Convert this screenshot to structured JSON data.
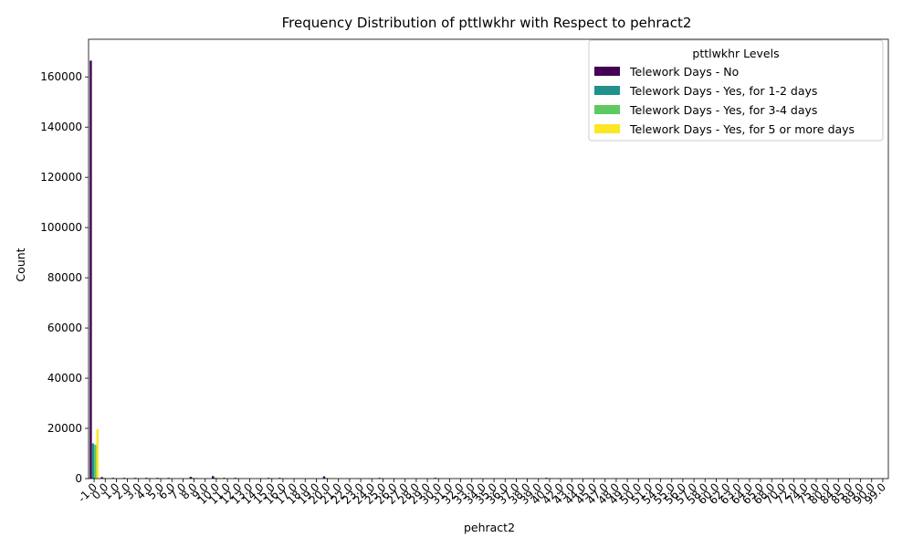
{
  "chart_data": {
    "type": "bar",
    "title": "Frequency Distribution of pttlwkhr with Respect to pehract2",
    "xlabel": "pehract2",
    "ylabel": "Count",
    "ylim": [
      0,
      175000
    ],
    "yticks": [
      0,
      20000,
      40000,
      60000,
      80000,
      100000,
      120000,
      140000,
      160000
    ],
    "grid": false,
    "legend": {
      "title": "pttlwkhr Levels",
      "placement": "top-right"
    },
    "categories": [
      "-1.0",
      "0.0",
      "1.0",
      "2.0",
      "3.0",
      "4.0",
      "5.0",
      "6.0",
      "7.0",
      "8.0",
      "9.0",
      "10.0",
      "11.0",
      "12.0",
      "13.0",
      "14.0",
      "15.0",
      "16.0",
      "17.0",
      "18.0",
      "19.0",
      "20.0",
      "21.0",
      "22.0",
      "23.0",
      "24.0",
      "25.0",
      "26.0",
      "27.0",
      "28.0",
      "29.0",
      "30.0",
      "31.0",
      "32.0",
      "33.0",
      "34.0",
      "35.0",
      "36.0",
      "37.0",
      "38.0",
      "39.0",
      "40.0",
      "42.0",
      "43.0",
      "44.0",
      "45.0",
      "47.0",
      "48.0",
      "49.0",
      "50.0",
      "51.0",
      "54.0",
      "55.0",
      "56.0",
      "57.0",
      "58.0",
      "60.0",
      "62.0",
      "63.0",
      "64.0",
      "65.0",
      "68.0",
      "70.0",
      "72.0",
      "74.0",
      "75.0",
      "80.0",
      "84.0",
      "85.0",
      "89.0",
      "90.0",
      "99.0"
    ],
    "series": [
      {
        "name": "Telework Days - No",
        "color": "#440154",
        "values": [
          166500,
          600,
          300,
          300,
          300,
          300,
          300,
          300,
          50,
          700,
          50,
          1000,
          300,
          300,
          50,
          50,
          300,
          300,
          50,
          50,
          50,
          900,
          50,
          50,
          50,
          50,
          300,
          50,
          50,
          50,
          50,
          300,
          50,
          50,
          50,
          50,
          50,
          50,
          50,
          50,
          50,
          300,
          50,
          50,
          50,
          50,
          50,
          50,
          50,
          50,
          50,
          50,
          50,
          50,
          50,
          50,
          50,
          50,
          50,
          50,
          50,
          50,
          50,
          50,
          50,
          50,
          50,
          50,
          50,
          50,
          50,
          50
        ]
      },
      {
        "name": "Telework Days - Yes, for 1-2 days",
        "color": "#21918c",
        "values": [
          14000,
          200,
          100,
          100,
          100,
          100,
          100,
          100,
          20,
          250,
          20,
          300,
          100,
          100,
          20,
          20,
          100,
          100,
          20,
          20,
          20,
          250,
          20,
          20,
          20,
          20,
          100,
          20,
          20,
          20,
          20,
          100,
          20,
          20,
          20,
          20,
          20,
          20,
          20,
          20,
          20,
          100,
          20,
          20,
          20,
          20,
          20,
          20,
          20,
          20,
          20,
          20,
          20,
          20,
          20,
          20,
          20,
          20,
          20,
          20,
          20,
          20,
          20,
          20,
          20,
          20,
          20,
          20,
          20,
          20,
          20,
          20
        ]
      },
      {
        "name": "Telework Days - Yes, for 3-4 days",
        "color": "#5ec962",
        "values": [
          13500,
          150,
          80,
          80,
          80,
          80,
          80,
          80,
          15,
          200,
          15,
          250,
          80,
          80,
          15,
          15,
          80,
          80,
          15,
          15,
          15,
          200,
          15,
          15,
          15,
          15,
          80,
          15,
          15,
          15,
          15,
          80,
          15,
          15,
          15,
          15,
          15,
          15,
          15,
          15,
          15,
          80,
          15,
          15,
          15,
          15,
          15,
          15,
          15,
          15,
          15,
          15,
          15,
          15,
          15,
          15,
          15,
          15,
          15,
          15,
          15,
          15,
          15,
          15,
          15,
          15,
          15,
          15,
          15,
          15,
          15,
          15
        ]
      },
      {
        "name": "Telework Days - Yes, for 5 or more days",
        "color": "#fde725",
        "values": [
          19700,
          200,
          100,
          100,
          100,
          100,
          100,
          100,
          20,
          250,
          20,
          300,
          100,
          100,
          20,
          20,
          100,
          100,
          20,
          20,
          20,
          250,
          20,
          20,
          20,
          20,
          100,
          20,
          20,
          20,
          20,
          100,
          20,
          20,
          20,
          20,
          20,
          20,
          20,
          20,
          20,
          100,
          20,
          20,
          20,
          20,
          20,
          20,
          20,
          20,
          20,
          20,
          20,
          20,
          20,
          20,
          20,
          20,
          20,
          20,
          20,
          20,
          20,
          20,
          20,
          20,
          20,
          20,
          20,
          20,
          20,
          20
        ]
      }
    ]
  }
}
